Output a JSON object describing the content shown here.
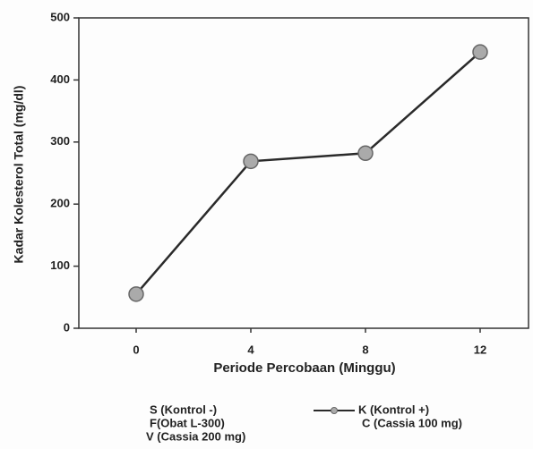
{
  "chart_data": {
    "type": "line",
    "categories": [
      "0",
      "4",
      "8",
      "12"
    ],
    "series": [
      {
        "name": "K (Kontrol +)",
        "color": "#2a2a2a",
        "values": [
          55,
          269,
          282,
          445
        ]
      }
    ],
    "legend_labels": [
      "S (Kontrol -)",
      "F(Obat L-300)",
      "V (Cassia 200 mg)",
      "C (Cassia 100 mg)"
    ],
    "xlabel": "Periode Percobaan (Minggu)",
    "ylabel": "Kadar Kolesterol Total (mg/dl)",
    "ylim": [
      0,
      500
    ],
    "yticks": [
      0,
      100,
      200,
      300,
      400,
      500
    ]
  }
}
